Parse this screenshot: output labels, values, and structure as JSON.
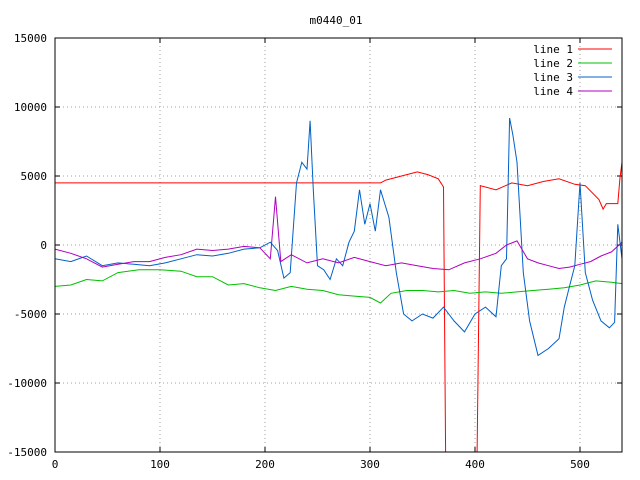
{
  "chart_data": {
    "type": "line",
    "title": "m0440_01",
    "xlabel": "",
    "ylabel": "",
    "xlim": [
      0,
      540
    ],
    "ylim": [
      -15000,
      15000
    ],
    "x_ticks": [
      0,
      100,
      200,
      300,
      400,
      500
    ],
    "y_ticks": [
      -15000,
      -10000,
      -5000,
      0,
      5000,
      10000,
      15000
    ],
    "grid": true,
    "legend_position": "top-right",
    "series": [
      {
        "name": "line 1",
        "color": "#ff0000",
        "points": [
          [
            0,
            4500
          ],
          [
            310,
            4500
          ],
          [
            315,
            4700
          ],
          [
            330,
            5000
          ],
          [
            345,
            5300
          ],
          [
            355,
            5100
          ],
          [
            365,
            4800
          ],
          [
            370,
            4200
          ],
          [
            372,
            -15000
          ],
          [
            402,
            -15000
          ],
          [
            405,
            4300
          ],
          [
            420,
            4000
          ],
          [
            435,
            4500
          ],
          [
            450,
            4300
          ],
          [
            465,
            4600
          ],
          [
            480,
            4800
          ],
          [
            495,
            4400
          ],
          [
            505,
            4300
          ],
          [
            518,
            3300
          ],
          [
            522,
            2600
          ],
          [
            525,
            3000
          ],
          [
            536,
            3000
          ],
          [
            538,
            4800
          ],
          [
            540,
            6000
          ]
        ]
      },
      {
        "name": "line 2",
        "color": "#00c000",
        "points": [
          [
            0,
            -3000
          ],
          [
            15,
            -2900
          ],
          [
            30,
            -2500
          ],
          [
            45,
            -2600
          ],
          [
            60,
            -2000
          ],
          [
            80,
            -1800
          ],
          [
            100,
            -1800
          ],
          [
            120,
            -1900
          ],
          [
            135,
            -2300
          ],
          [
            150,
            -2300
          ],
          [
            165,
            -2900
          ],
          [
            180,
            -2800
          ],
          [
            195,
            -3100
          ],
          [
            210,
            -3300
          ],
          [
            225,
            -3000
          ],
          [
            240,
            -3200
          ],
          [
            255,
            -3300
          ],
          [
            270,
            -3600
          ],
          [
            285,
            -3700
          ],
          [
            300,
            -3800
          ],
          [
            310,
            -4200
          ],
          [
            320,
            -3500
          ],
          [
            335,
            -3300
          ],
          [
            350,
            -3300
          ],
          [
            365,
            -3400
          ],
          [
            380,
            -3300
          ],
          [
            395,
            -3500
          ],
          [
            410,
            -3400
          ],
          [
            425,
            -3500
          ],
          [
            440,
            -3400
          ],
          [
            455,
            -3300
          ],
          [
            470,
            -3200
          ],
          [
            485,
            -3100
          ],
          [
            500,
            -2900
          ],
          [
            515,
            -2600
          ],
          [
            530,
            -2700
          ],
          [
            540,
            -2800
          ]
        ]
      },
      {
        "name": "line 3",
        "color": "#0060c8",
        "points": [
          [
            0,
            -1000
          ],
          [
            15,
            -1200
          ],
          [
            30,
            -800
          ],
          [
            45,
            -1500
          ],
          [
            60,
            -1300
          ],
          [
            75,
            -1400
          ],
          [
            90,
            -1500
          ],
          [
            105,
            -1300
          ],
          [
            120,
            -1000
          ],
          [
            135,
            -700
          ],
          [
            150,
            -800
          ],
          [
            165,
            -600
          ],
          [
            180,
            -300
          ],
          [
            195,
            -200
          ],
          [
            205,
            200
          ],
          [
            212,
            -400
          ],
          [
            218,
            -2400
          ],
          [
            224,
            -2000
          ],
          [
            230,
            4500
          ],
          [
            235,
            6000
          ],
          [
            240,
            5500
          ],
          [
            243,
            9000
          ],
          [
            246,
            4000
          ],
          [
            250,
            -1500
          ],
          [
            256,
            -1800
          ],
          [
            262,
            -2500
          ],
          [
            268,
            -1000
          ],
          [
            274,
            -1500
          ],
          [
            280,
            200
          ],
          [
            285,
            1000
          ],
          [
            290,
            4000
          ],
          [
            295,
            1500
          ],
          [
            300,
            3000
          ],
          [
            305,
            1000
          ],
          [
            310,
            4000
          ],
          [
            318,
            2000
          ],
          [
            325,
            -2000
          ],
          [
            332,
            -5000
          ],
          [
            340,
            -5500
          ],
          [
            350,
            -5000
          ],
          [
            360,
            -5300
          ],
          [
            370,
            -4500
          ],
          [
            380,
            -5500
          ],
          [
            390,
            -6300
          ],
          [
            400,
            -5000
          ],
          [
            410,
            -4500
          ],
          [
            420,
            -5200
          ],
          [
            425,
            -1500
          ],
          [
            430,
            -1000
          ],
          [
            433,
            9200
          ],
          [
            436,
            8000
          ],
          [
            440,
            6000
          ],
          [
            446,
            -2000
          ],
          [
            452,
            -5500
          ],
          [
            460,
            -8000
          ],
          [
            470,
            -7500
          ],
          [
            480,
            -6800
          ],
          [
            485,
            -4500
          ],
          [
            490,
            -3000
          ],
          [
            495,
            -1500
          ],
          [
            500,
            4500
          ],
          [
            505,
            -2000
          ],
          [
            512,
            -4000
          ],
          [
            520,
            -5500
          ],
          [
            528,
            -6000
          ],
          [
            533,
            -5600
          ],
          [
            536,
            1500
          ],
          [
            540,
            -1000
          ]
        ]
      },
      {
        "name": "line 4",
        "color": "#b000c0",
        "points": [
          [
            0,
            -300
          ],
          [
            15,
            -600
          ],
          [
            30,
            -1000
          ],
          [
            45,
            -1600
          ],
          [
            60,
            -1400
          ],
          [
            75,
            -1200
          ],
          [
            90,
            -1200
          ],
          [
            105,
            -900
          ],
          [
            120,
            -700
          ],
          [
            135,
            -300
          ],
          [
            150,
            -400
          ],
          [
            165,
            -300
          ],
          [
            180,
            -100
          ],
          [
            195,
            -200
          ],
          [
            205,
            -1000
          ],
          [
            210,
            3500
          ],
          [
            215,
            -1200
          ],
          [
            225,
            -700
          ],
          [
            240,
            -1300
          ],
          [
            255,
            -1000
          ],
          [
            270,
            -1300
          ],
          [
            285,
            -900
          ],
          [
            300,
            -1200
          ],
          [
            315,
            -1500
          ],
          [
            330,
            -1300
          ],
          [
            345,
            -1500
          ],
          [
            360,
            -1700
          ],
          [
            375,
            -1800
          ],
          [
            390,
            -1300
          ],
          [
            405,
            -1000
          ],
          [
            420,
            -600
          ],
          [
            430,
            0
          ],
          [
            440,
            300
          ],
          [
            450,
            -1000
          ],
          [
            460,
            -1300
          ],
          [
            470,
            -1500
          ],
          [
            480,
            -1700
          ],
          [
            490,
            -1600
          ],
          [
            500,
            -1400
          ],
          [
            510,
            -1200
          ],
          [
            520,
            -800
          ],
          [
            530,
            -500
          ],
          [
            540,
            200
          ]
        ]
      }
    ]
  }
}
